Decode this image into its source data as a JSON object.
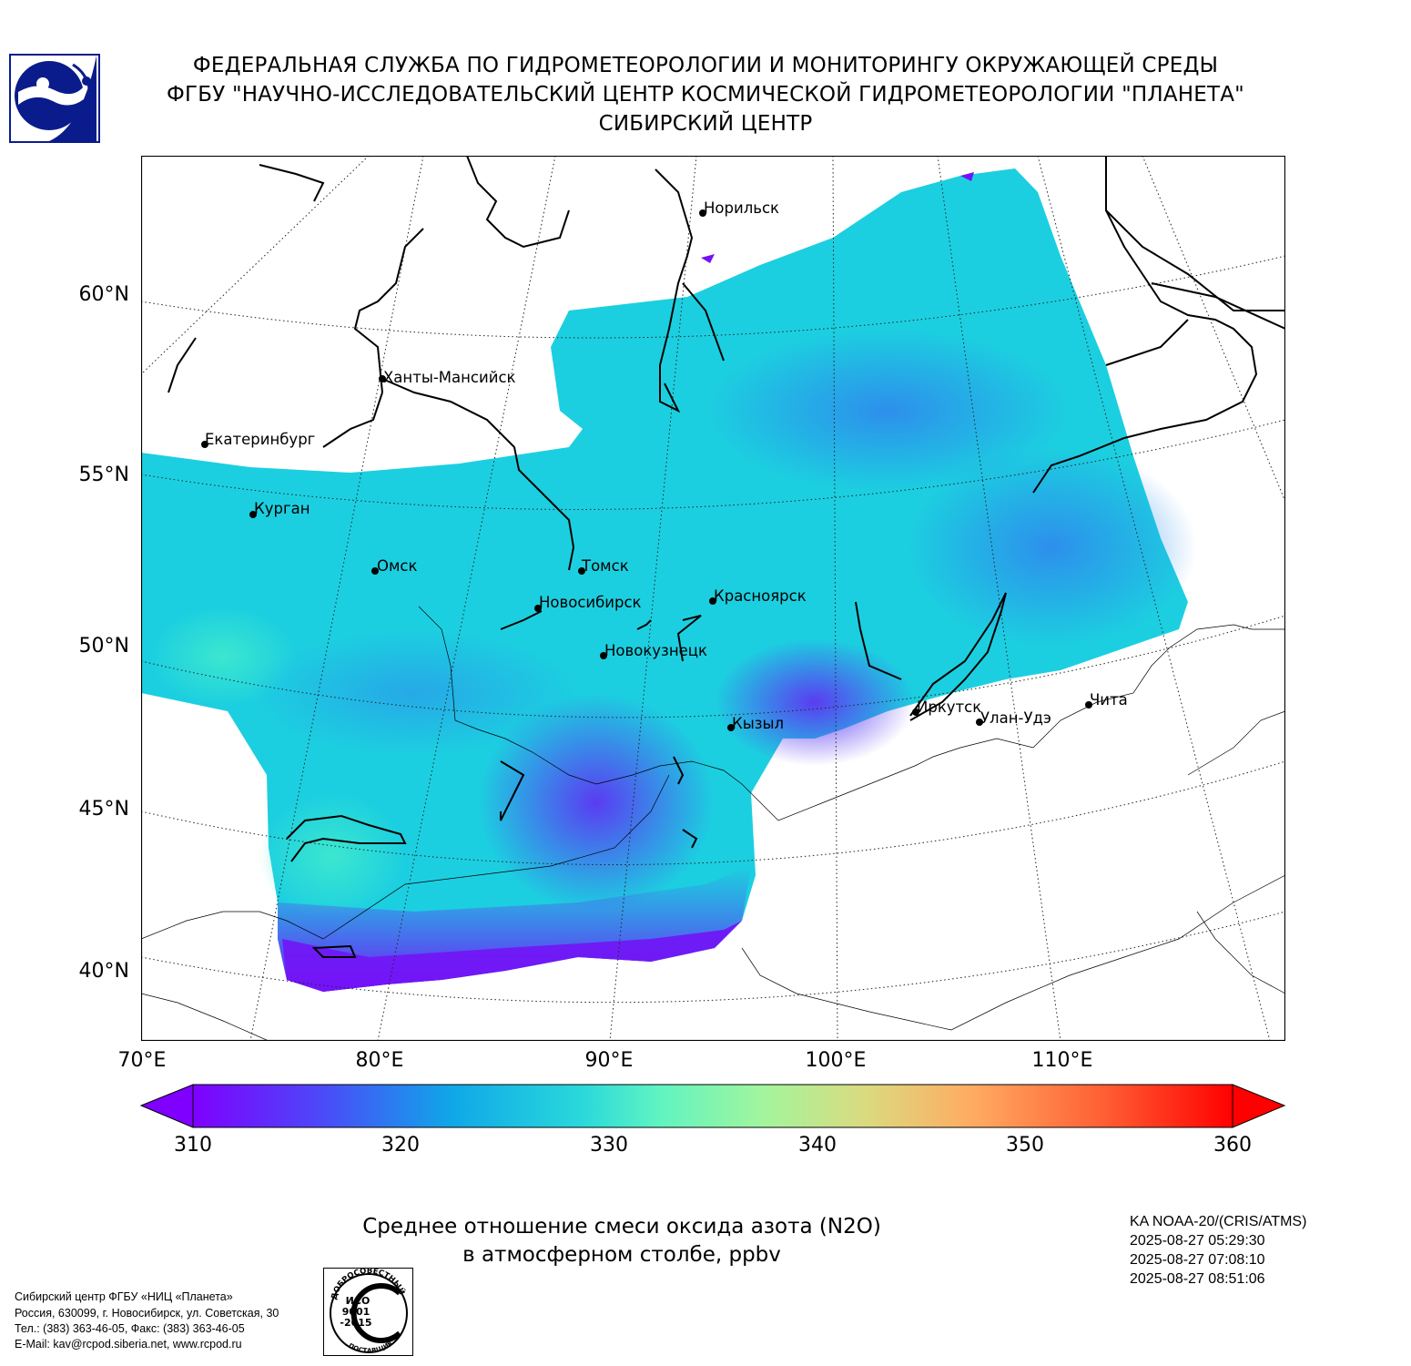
{
  "header": {
    "line1": "ФЕДЕРАЛЬНАЯ СЛУЖБА ПО ГИДРОМЕТЕОРОЛОГИИ И МОНИТОРИНГУ ОКРУЖАЮЩЕЙ СРЕДЫ",
    "line2": "ФГБУ \"НАУЧНО-ИССЛЕДОВАТЕЛЬСКИЙ ЦЕНТР КОСМИЧЕСКОЙ ГИДРОМЕТЕОРОЛОГИИ \"ПЛАНЕТА\"",
    "line3": "СИБИРСКИЙ ЦЕНТР"
  },
  "map": {
    "latitude_labels": [
      "60°N",
      "55°N",
      "50°N",
      "45°N",
      "40°N"
    ],
    "longitude_labels": [
      "70°E",
      "80°E",
      "90°E",
      "100°E",
      "110°E"
    ],
    "cities": [
      {
        "name": "Норильск"
      },
      {
        "name": "Ханты-Мансийск"
      },
      {
        "name": "Екатеринбург"
      },
      {
        "name": "Курган"
      },
      {
        "name": "Омск"
      },
      {
        "name": "Томск"
      },
      {
        "name": "Новосибирск"
      },
      {
        "name": "Красноярск"
      },
      {
        "name": "Новокузнецк"
      },
      {
        "name": "Иркутск"
      },
      {
        "name": "Улан-Удэ"
      },
      {
        "name": "Чита"
      },
      {
        "name": "Кызыл"
      }
    ]
  },
  "colorbar": {
    "min": 310,
    "max": 360,
    "tick_labels": [
      "310",
      "320",
      "330",
      "340",
      "350",
      "360"
    ],
    "extend": "both",
    "colormap": "rainbow"
  },
  "product": {
    "title_line1": "Среднее отношение смеси оксида азота (N2O)",
    "title_line2": "в атмосферном столбе, ppbv"
  },
  "satellite": {
    "name": "KA NOAA-20/(CRIS/ATMS)",
    "times": [
      "2025-08-27 05:29:30",
      "2025-08-27 07:08:10",
      "2025-08-27 08:51:06"
    ]
  },
  "footer": {
    "line1": "Сибирский центр ФГБУ «НИЦ «Планета»",
    "line2": "Россия, 630099, г. Новосибирск, ул. Советская, 30",
    "line3": "Тел.: (383) 363-46-05, Факс: (383) 363-46-05",
    "line4": "E-Mail: kav@rcpod.siberia.net, www.rcpod.ru"
  },
  "iso_stamp": {
    "top_text": "ДОБРОСОВЕСТНЫЙ",
    "middle_lines": [
      "ИСО",
      "9001",
      "-2015"
    ],
    "bottom_text": "ПОСТАВЩИК"
  },
  "colors": {
    "field_low": "#6a1cf6",
    "field_main": "#1fb7e6",
    "field_high": "#2de0d2",
    "frame": "#000000"
  }
}
